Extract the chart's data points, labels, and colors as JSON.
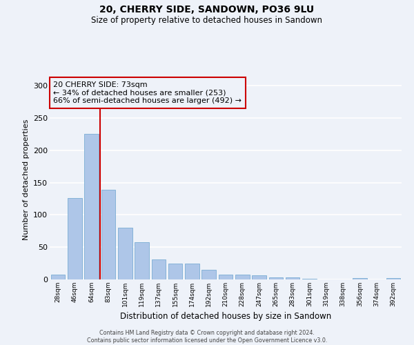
{
  "title": "20, CHERRY SIDE, SANDOWN, PO36 9LU",
  "subtitle": "Size of property relative to detached houses in Sandown",
  "xlabel": "Distribution of detached houses by size in Sandown",
  "ylabel": "Number of detached properties",
  "bar_labels": [
    "28sqm",
    "46sqm",
    "64sqm",
    "83sqm",
    "101sqm",
    "119sqm",
    "137sqm",
    "155sqm",
    "174sqm",
    "192sqm",
    "210sqm",
    "228sqm",
    "247sqm",
    "265sqm",
    "283sqm",
    "301sqm",
    "319sqm",
    "338sqm",
    "356sqm",
    "374sqm",
    "392sqm"
  ],
  "bar_values": [
    7,
    126,
    226,
    139,
    80,
    58,
    31,
    25,
    25,
    15,
    8,
    8,
    6,
    3,
    3,
    1,
    0,
    0,
    2,
    0,
    2
  ],
  "bar_color": "#aec6e8",
  "bar_edge_color": "#7aadd4",
  "vline_color": "#cc0000",
  "annotation_box_text": "20 CHERRY SIDE: 73sqm\n← 34% of detached houses are smaller (253)\n66% of semi-detached houses are larger (492) →",
  "annotation_box_color": "#cc0000",
  "ylim": [
    0,
    310
  ],
  "yticks": [
    0,
    50,
    100,
    150,
    200,
    250,
    300
  ],
  "background_color": "#eef2f9",
  "grid_color": "#ffffff",
  "footer_line1": "Contains HM Land Registry data © Crown copyright and database right 2024.",
  "footer_line2": "Contains public sector information licensed under the Open Government Licence v3.0."
}
